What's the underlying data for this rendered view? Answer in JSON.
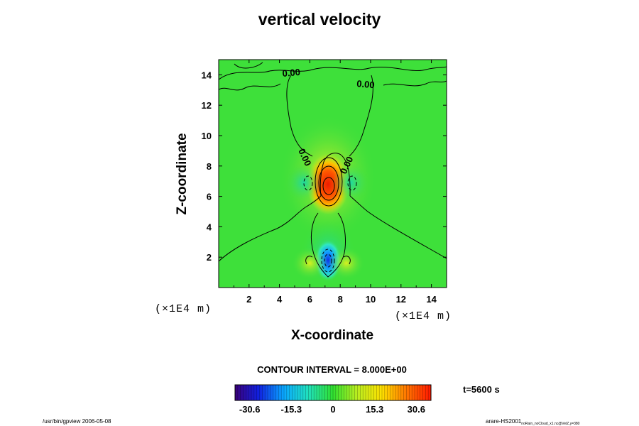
{
  "chart_data": {
    "type": "heatmap",
    "title": "vertical velocity",
    "xlabel": "X-coordinate",
    "ylabel": "Z-coordinate",
    "x_units": "(×1E4 m)",
    "y_units": "(×1E4 m)",
    "xlim": [
      0,
      15
    ],
    "ylim": [
      0,
      15
    ],
    "x_ticks": [
      "2",
      "4",
      "6",
      "8",
      "10",
      "12",
      "14"
    ],
    "y_ticks": [
      "2",
      "4",
      "6",
      "8",
      "10",
      "12",
      "14"
    ],
    "contour_labels": [
      "0.00",
      "0.00",
      "0.00",
      "0.00"
    ],
    "contour_interval": "CONTOUR INTERVAL = 8.000E+00",
    "colorbar": {
      "ticks": [
        "-30.6",
        "-15.3",
        "0",
        "15.3",
        "30.6"
      ],
      "min": -36,
      "max": 36
    },
    "features": [
      {
        "kind": "updraft",
        "x": 7.2,
        "z": 6.8,
        "value": 36
      },
      {
        "kind": "downdraft",
        "x": 7.2,
        "z": 1.8,
        "value": -30
      },
      {
        "kind": "downdraft",
        "x": 5.6,
        "z": 6.9,
        "value": -10
      },
      {
        "kind": "downdraft",
        "x": 8.7,
        "z": 6.9,
        "value": -10
      },
      {
        "kind": "updraft",
        "x": 6.0,
        "z": 1.6,
        "value": 14
      },
      {
        "kind": "updraft",
        "x": 8.4,
        "z": 1.6,
        "value": 14
      }
    ],
    "time": "t=5600 s"
  },
  "footer": {
    "left": "/usr/bin/gpview 2006-05-08",
    "right_main": "arare-HS2001",
    "right_sub": "noRain_noCloud_x1.nc@VelZ,y=380"
  }
}
